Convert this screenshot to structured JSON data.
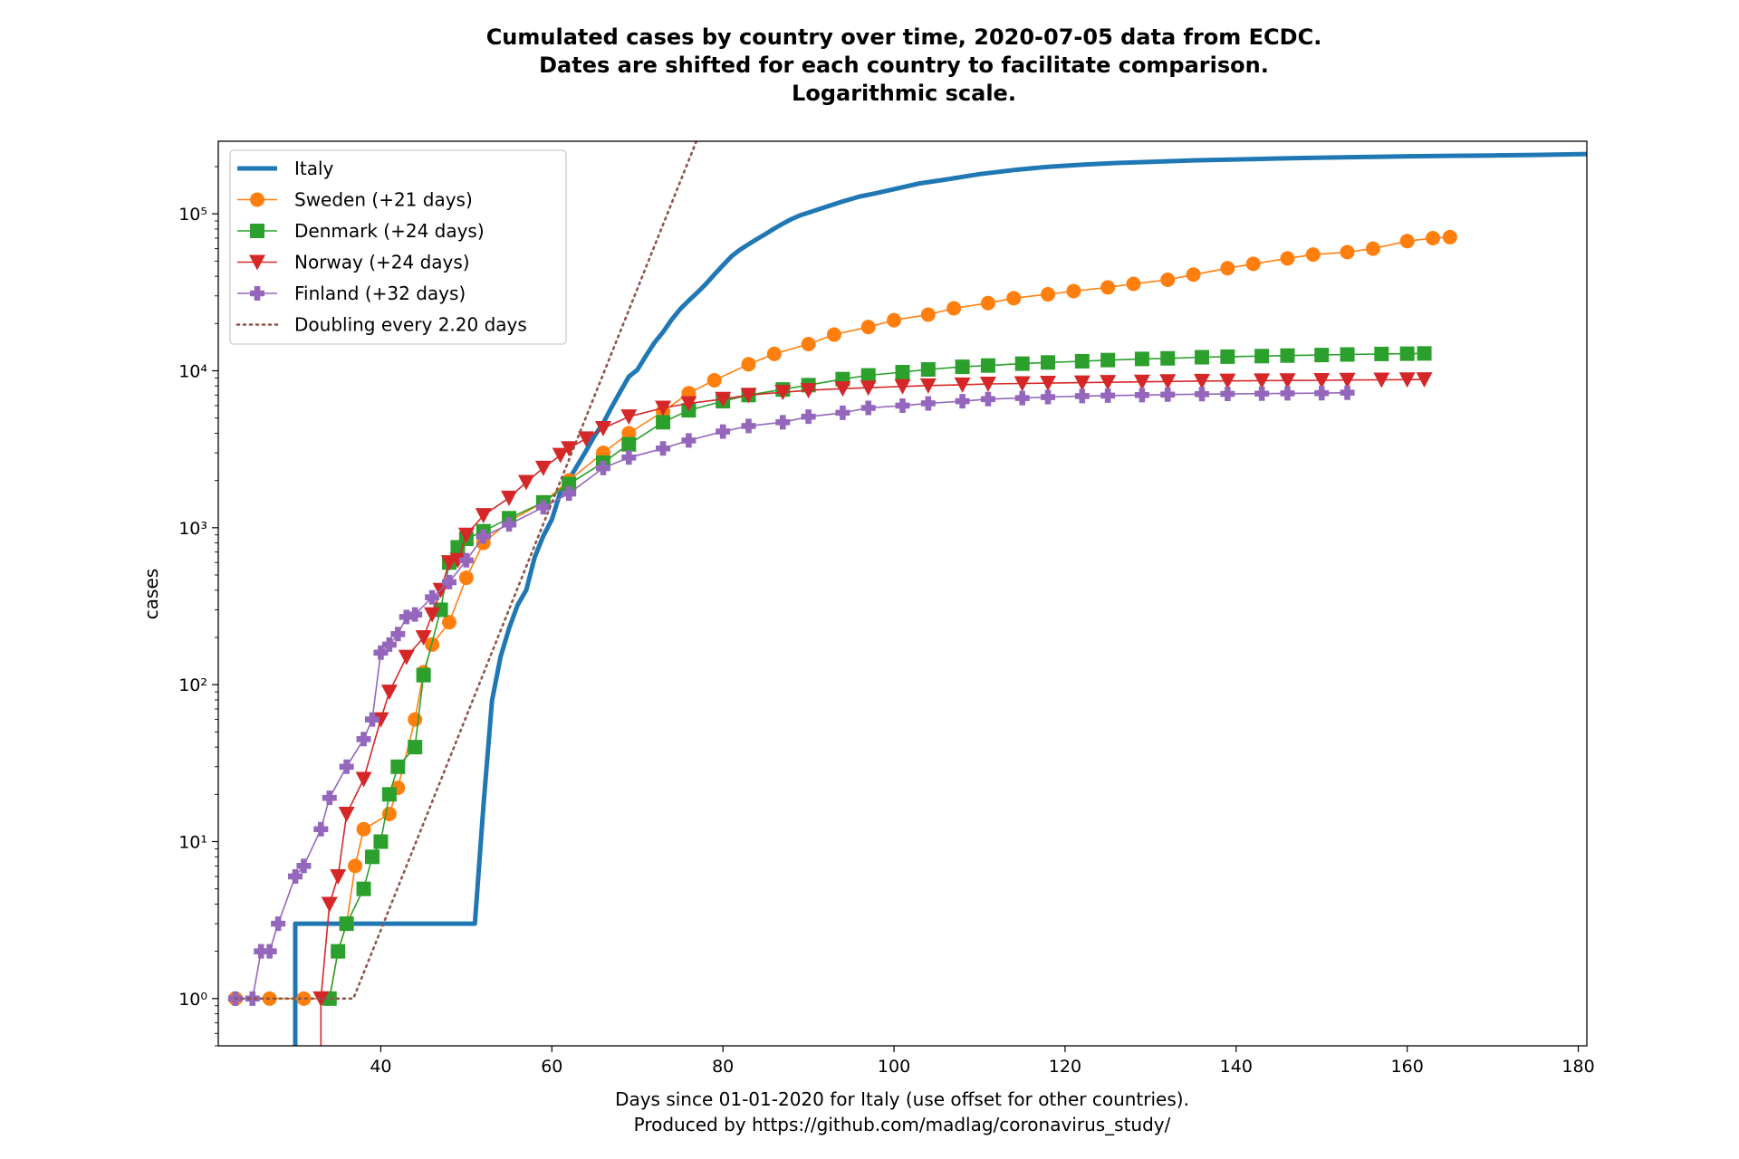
{
  "chart_data": {
    "type": "line",
    "title": [
      "Cumulated cases by country over time, 2020-07-05 data from ECDC.",
      "Dates are shifted for each country to facilitate comparison.",
      "Logarithmic scale."
    ],
    "xlabel": [
      "Days since 01-01-2020 for Italy (use offset for other countries).",
      "Produced by https://github.com/madlag/coronavirus_study/"
    ],
    "ylabel": "cases",
    "y_scale": "log",
    "xlim": [
      21,
      181
    ],
    "ylim": [
      0.5,
      290000
    ],
    "x_ticks": [
      40,
      60,
      80,
      100,
      120,
      140,
      160,
      180
    ],
    "y_ticks": [
      1,
      10,
      100,
      1000,
      10000,
      100000
    ],
    "y_tick_labels": [
      "10⁰",
      "10¹",
      "10²",
      "10³",
      "10⁴",
      "10⁵"
    ],
    "grid": false,
    "legend_position": "top-left",
    "series": [
      {
        "name": "Italy",
        "color": "#1f77b4",
        "marker": "none",
        "width": "thick",
        "x": [
          30,
          30,
          51,
          52,
          53,
          54,
          55,
          56,
          57,
          58,
          59,
          60,
          61,
          62,
          63,
          64,
          65,
          66,
          67,
          68,
          69,
          70,
          71,
          72,
          73,
          74,
          75,
          76,
          77,
          78,
          79,
          80,
          81,
          82,
          83,
          84,
          85,
          86,
          87,
          88,
          89,
          90,
          92,
          94,
          96,
          98,
          100,
          103,
          106,
          110,
          114,
          118,
          122,
          126,
          130,
          135,
          140,
          145,
          150,
          155,
          160,
          165,
          170,
          175,
          181
        ],
        "y": [
          0.3,
          3,
          3,
          17,
          79,
          150,
          229,
          322,
          400,
          650,
          888,
          1128,
          1694,
          2036,
          2502,
          3089,
          3858,
          4636,
          5883,
          7375,
          9172,
          10149,
          12462,
          15113,
          17660,
          21157,
          24747,
          27980,
          31506,
          35713,
          41035,
          47021,
          53578,
          59138,
          63927,
          69176,
          74386,
          80539,
          86498,
          92472,
          97689,
          101739,
          110574,
          119827,
          128948,
          135586,
          143626,
          156363,
          165155,
          178972,
          189973,
          199414,
          205463,
          210717,
          214457,
          219070,
          222104,
          225435,
          228006,
          230158,
          232664,
          234013,
          235561,
          237290,
          240578
        ]
      },
      {
        "name": "Sweden (+21 days)",
        "color": "#ff7f0e",
        "marker": "circle",
        "width": "thin",
        "x": [
          23,
          27,
          31,
          34,
          35,
          36,
          37,
          38,
          41,
          42,
          44,
          45,
          46,
          48,
          50,
          52,
          55,
          59,
          62,
          66,
          69,
          73,
          76,
          79,
          83,
          86,
          90,
          93,
          97,
          100,
          104,
          107,
          111,
          114,
          118,
          121,
          125,
          128,
          132,
          135,
          139,
          142,
          146,
          149,
          153,
          156,
          160,
          163,
          165
        ],
        "y": [
          1,
          1,
          1,
          1,
          2,
          3,
          7,
          12,
          15,
          22,
          60,
          120,
          180,
          250,
          480,
          800,
          1100,
          1450,
          2000,
          3000,
          4000,
          5500,
          7200,
          8700,
          11000,
          12800,
          14800,
          17000,
          19000,
          21000,
          22800,
          25000,
          27000,
          29000,
          30700,
          32200,
          34000,
          35800,
          38000,
          41000,
          45000,
          48000,
          52000,
          55000,
          57000,
          60000,
          67000,
          70000,
          71000
        ]
      },
      {
        "name": "Denmark (+24 days)",
        "color": "#2ca02c",
        "marker": "square",
        "width": "thin",
        "x": [
          34,
          35,
          36,
          38,
          39,
          40,
          41,
          42,
          44,
          45,
          47,
          48,
          49,
          50,
          52,
          55,
          59,
          62,
          66,
          69,
          73,
          76,
          80,
          83,
          87,
          90,
          94,
          97,
          101,
          104,
          108,
          111,
          115,
          118,
          122,
          125,
          129,
          132,
          136,
          139,
          143,
          146,
          150,
          153,
          157,
          160,
          162
        ],
        "y": [
          1,
          2,
          3,
          5,
          8,
          10,
          20,
          30,
          40,
          115,
          300,
          600,
          750,
          850,
          950,
          1150,
          1450,
          1900,
          2600,
          3400,
          4700,
          5600,
          6400,
          7000,
          7600,
          8100,
          8850,
          9350,
          9800,
          10200,
          10600,
          10800,
          11100,
          11300,
          11500,
          11700,
          11900,
          12000,
          12200,
          12300,
          12400,
          12500,
          12600,
          12700,
          12800,
          12850,
          12900
        ]
      },
      {
        "name": "Norway (+24 days)",
        "color": "#d62728",
        "marker": "triangle-down",
        "width": "thin",
        "x": [
          33,
          33,
          34,
          35,
          36,
          38,
          40,
          41,
          43,
          45,
          46,
          47,
          48,
          49,
          50,
          52,
          55,
          57,
          59,
          61,
          62,
          64,
          66,
          69,
          73,
          76,
          80,
          83,
          87,
          90,
          94,
          97,
          101,
          104,
          108,
          111,
          115,
          118,
          122,
          125,
          129,
          132,
          136,
          139,
          143,
          146,
          150,
          153,
          157,
          160,
          162
        ],
        "y": [
          0.3,
          1,
          4,
          6,
          15,
          25,
          60,
          90,
          150,
          200,
          280,
          400,
          600,
          620,
          900,
          1200,
          1550,
          1950,
          2400,
          2900,
          3200,
          3700,
          4300,
          5100,
          5800,
          6200,
          6600,
          7000,
          7300,
          7500,
          7700,
          7800,
          7950,
          8050,
          8150,
          8250,
          8300,
          8350,
          8400,
          8450,
          8500,
          8550,
          8600,
          8620,
          8650,
          8670,
          8700,
          8730,
          8750,
          8780,
          8800
        ]
      },
      {
        "name": "Finland (+32 days)",
        "color": "#9467bd",
        "marker": "plus-filled",
        "width": "thin",
        "x": [
          23,
          25,
          26,
          27,
          28,
          30,
          31,
          33,
          34,
          36,
          38,
          39,
          40,
          41,
          42,
          43,
          44,
          46,
          48,
          50,
          52,
          55,
          59,
          62,
          66,
          69,
          73,
          76,
          80,
          83,
          87,
          90,
          94,
          97,
          101,
          104,
          108,
          111,
          115,
          118,
          122,
          125,
          129,
          132,
          136,
          139,
          143,
          146,
          150,
          153
        ],
        "y": [
          1,
          1,
          2,
          2,
          3,
          6,
          7,
          12,
          19,
          30,
          45,
          60,
          160,
          180,
          210,
          270,
          280,
          360,
          450,
          620,
          880,
          1050,
          1350,
          1650,
          2400,
          2800,
          3200,
          3600,
          4100,
          4450,
          4700,
          5100,
          5400,
          5800,
          6000,
          6200,
          6400,
          6600,
          6700,
          6800,
          6900,
          6950,
          7000,
          7050,
          7100,
          7120,
          7150,
          7180,
          7200,
          7250
        ]
      },
      {
        "name": "Doubling every 2.20 days",
        "color": "#8c564b",
        "marker": "none",
        "width": "dotted",
        "x": [
          23,
          36.8,
          77
        ],
        "y": [
          1,
          1,
          300000
        ]
      }
    ]
  }
}
